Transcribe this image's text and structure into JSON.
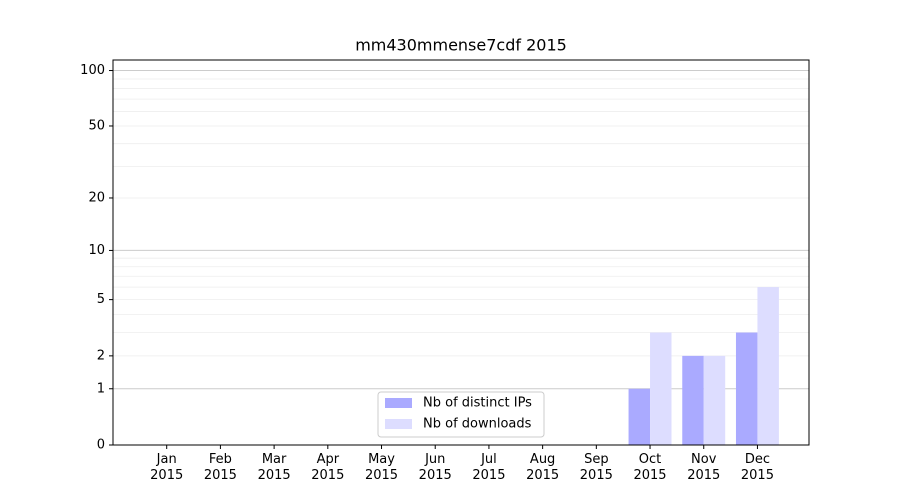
{
  "chart_data": {
    "type": "bar",
    "title": "mm430mmense7cdf 2015",
    "categories": [
      "Jan\n2015",
      "Feb\n2015",
      "Mar\n2015",
      "Apr\n2015",
      "May\n2015",
      "Jun\n2015",
      "Jul\n2015",
      "Aug\n2015",
      "Sep\n2015",
      "Oct\n2015",
      "Nov\n2015",
      "Dec\n2015"
    ],
    "series": [
      {
        "name": "Nb of distinct IPs",
        "color": "#aaaaff",
        "values": [
          0,
          0,
          0,
          0,
          0,
          0,
          0,
          0,
          0,
          1,
          2,
          3
        ]
      },
      {
        "name": "Nb of downloads",
        "color": "#ddddff",
        "values": [
          0,
          0,
          0,
          0,
          0,
          0,
          0,
          0,
          0,
          3,
          2,
          6
        ]
      }
    ],
    "yscale": "log1p",
    "ylim": [
      0,
      114
    ],
    "yticks": [
      0,
      1,
      2,
      5,
      10,
      20,
      50,
      100
    ],
    "major_grid": [
      1,
      10,
      100
    ],
    "minor_grid": [
      2,
      3,
      4,
      5,
      6,
      7,
      8,
      9,
      20,
      30,
      40,
      50,
      60,
      70,
      80,
      90
    ],
    "legend": "lower center"
  }
}
